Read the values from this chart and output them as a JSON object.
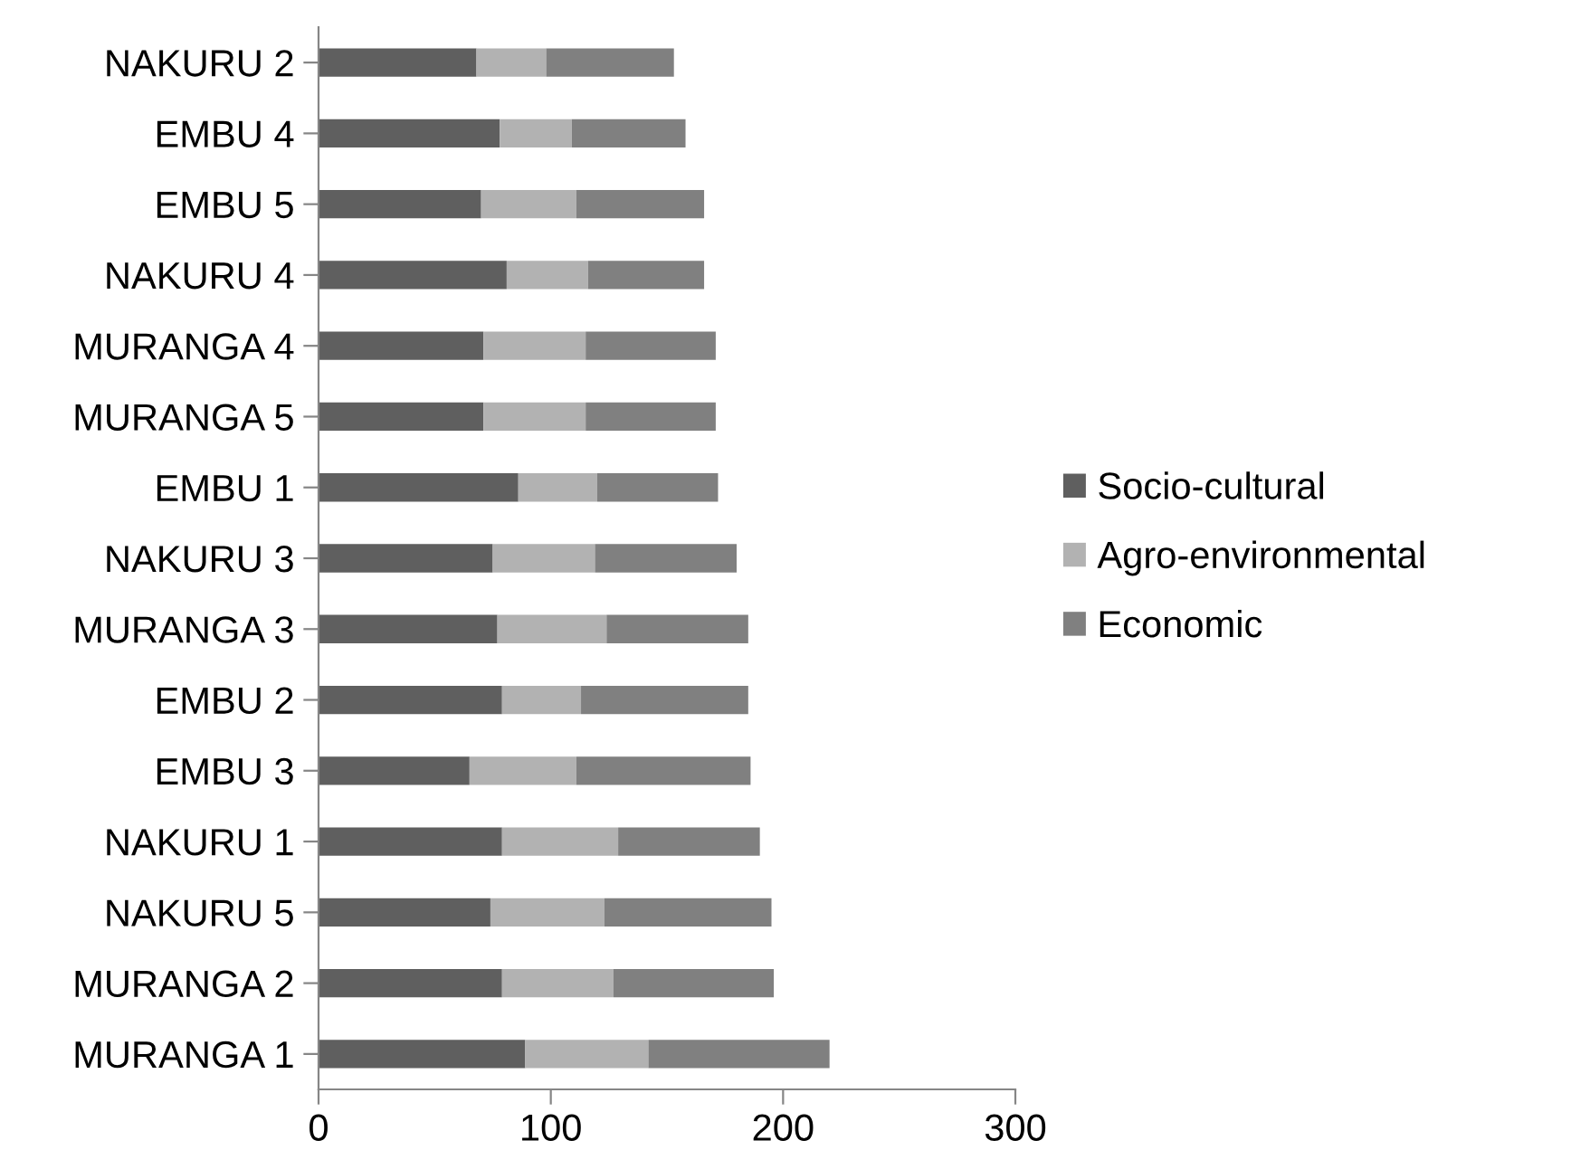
{
  "chart_data": {
    "type": "bar",
    "orientation": "horizontal",
    "stacked": true,
    "categories": [
      "NAKURU 2",
      "EMBU 4",
      "EMBU 5",
      "NAKURU 4",
      "MURANGA 4",
      "MURANGA 5",
      "EMBU 1",
      "NAKURU 3",
      "MURANGA 3",
      "EMBU 2",
      "EMBU 3",
      "NAKURU 1",
      "NAKURU 5",
      "MURANGA 2",
      "MURANGA 1"
    ],
    "series": [
      {
        "name": "Socio-cultural",
        "color": "#5f5f5f",
        "values": [
          68,
          78,
          70,
          81,
          71,
          71,
          86,
          75,
          77,
          79,
          65,
          79,
          74,
          79,
          89
        ]
      },
      {
        "name": "Agro-environmental",
        "color": "#b2b2b2",
        "values": [
          30,
          31,
          41,
          35,
          44,
          44,
          34,
          44,
          47,
          34,
          46,
          50,
          49,
          48,
          53
        ]
      },
      {
        "name": "Economic",
        "color": "#808080",
        "values": [
          55,
          49,
          55,
          50,
          56,
          56,
          52,
          61,
          61,
          72,
          75,
          61,
          72,
          69,
          78
        ]
      }
    ],
    "xlim": [
      0,
      300
    ],
    "xticks": [
      0,
      100,
      200,
      300
    ],
    "grid": false,
    "legend": "right"
  }
}
